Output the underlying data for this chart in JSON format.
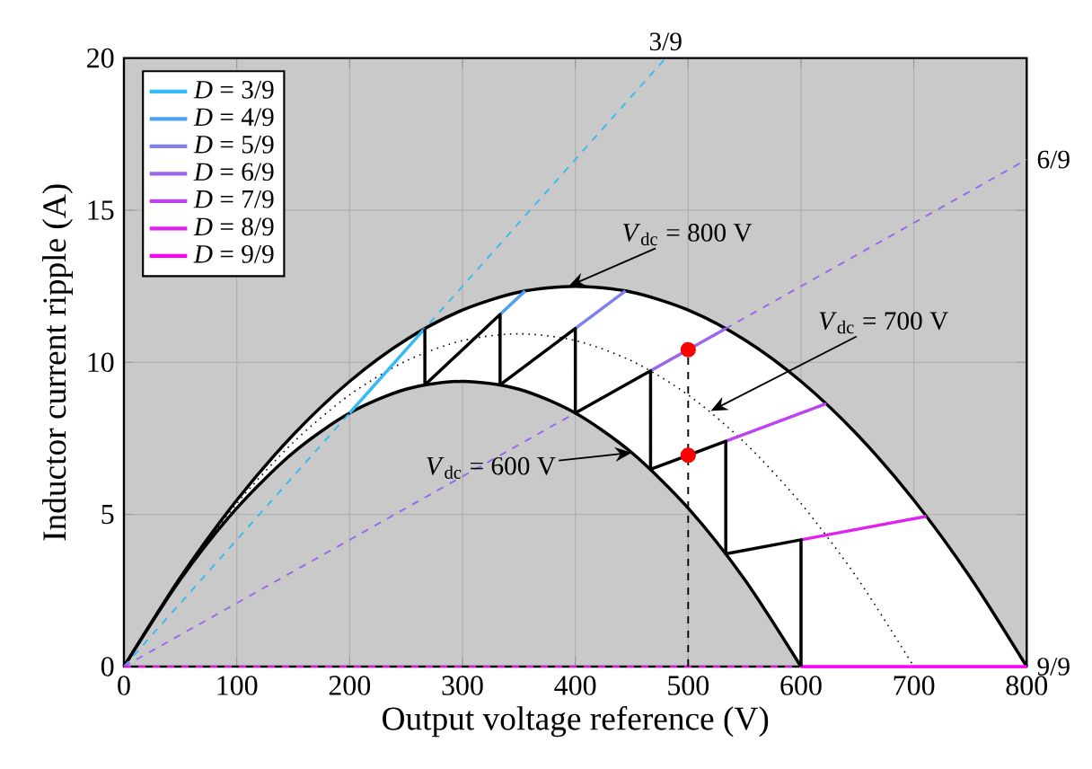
{
  "chart_data": {
    "type": "line",
    "xlabel": "Output voltage reference (V)",
    "ylabel": "Inductor current ripple (A)",
    "xlim": [
      0,
      800
    ],
    "xticks": [
      0,
      100,
      200,
      300,
      400,
      500,
      600,
      700,
      800
    ],
    "ylim": [
      0,
      20
    ],
    "yticks": [
      0,
      5,
      10,
      15,
      20
    ],
    "grid": true,
    "legend": "top left",
    "series": [
      {
        "color": "#000000",
        "line_style": "solid",
        "x": [
          0,
          50,
          100,
          150,
          200,
          250,
          300,
          350,
          400,
          450,
          500,
          550,
          600,
          650,
          700,
          750,
          800
        ],
        "values": [
          0,
          2.93,
          5.469,
          7.617,
          9.375,
          10.742,
          11.719,
          12.305,
          12.5,
          12.305,
          11.719,
          10.742,
          9.375,
          7.617,
          5.469,
          2.93,
          0
        ],
        "upper": [
          0,
          2.93,
          5.469,
          7.617,
          9.375,
          10.742,
          11.719,
          12.305,
          12.5,
          12.305,
          11.719,
          10.742,
          9.375,
          7.617,
          5.469,
          2.93,
          0
        ],
        "lower": [
          0,
          2.865,
          5.208,
          7.031,
          8.333,
          9.115,
          9.375,
          9.115,
          8.333,
          7.031,
          5.208,
          2.865,
          0,
          0,
          0,
          0,
          0
        ]
      },
      {
        "color": "#000000",
        "line_style": "solid",
        "x": [
          0,
          50,
          100,
          150,
          200,
          250,
          300,
          350,
          400,
          450,
          500,
          550,
          600
        ],
        "values": [
          0,
          2.865,
          5.208,
          7.031,
          8.333,
          9.115,
          9.375,
          9.115,
          8.333,
          7.031,
          5.208,
          2.865,
          0
        ]
      },
      {
        "color": "#000000",
        "line_style": "dotted",
        "x": [
          0,
          50,
          100,
          150,
          200,
          250,
          300,
          350,
          400,
          450,
          500,
          550,
          600,
          650,
          700
        ],
        "values": [
          0,
          2.902,
          5.357,
          7.366,
          8.929,
          10.045,
          10.714,
          10.938,
          10.714,
          10.045,
          8.929,
          7.366,
          5.357,
          2.902,
          0
        ]
      },
      {
        "color": "#33bbf5",
        "line_style": "dashed",
        "x": [
          0,
          480
        ],
        "values": [
          0,
          20
        ]
      },
      {
        "color": "#9966ee",
        "line_style": "dashed",
        "x": [
          0,
          800
        ],
        "values": [
          0,
          16.667
        ]
      },
      {
        "color": "#ff00ff",
        "line_style": "dashed",
        "x": [
          0,
          600
        ],
        "values": [
          0,
          0
        ]
      },
      {
        "name": "*D* = 3/9",
        "color": "#33bbf5",
        "line_style": "solid",
        "x": [
          200,
          266.67
        ],
        "values": [
          8.333,
          11.111
        ]
      },
      {
        "name": "*D* = 4/9",
        "color": "#4d9ff2",
        "line_style": "solid",
        "x": [
          333.33,
          355.56
        ],
        "values": [
          11.574,
          12.346
        ]
      },
      {
        "name": "*D* = 5/9",
        "color": "#7f80f0",
        "line_style": "solid",
        "x": [
          400,
          444.44
        ],
        "values": [
          11.111,
          12.346
        ]
      },
      {
        "name": "*D* = 6/9",
        "color": "#9966ee",
        "line_style": "solid",
        "x": [
          466.67,
          533.33
        ],
        "values": [
          9.722,
          11.111
        ]
      },
      {
        "name": "*D* = 7/9",
        "color": "#bb44ee",
        "line_style": "solid",
        "x": [
          533.33,
          622.22
        ],
        "values": [
          7.407,
          8.642
        ]
      },
      {
        "name": "*D* = 8/9",
        "color": "#dd22ee",
        "line_style": "solid",
        "x": [
          600,
          711.11
        ],
        "values": [
          4.167,
          4.938
        ]
      },
      {
        "name": "*D* = 9/9",
        "color": "#ff00ff",
        "line_style": "solid",
        "x": [
          600,
          800
        ],
        "values": [
          0,
          0
        ]
      },
      {
        "color": "#000000",
        "line_style": "solid",
        "x": [
          266.67,
          266.67,
          333.33,
          333.33,
          400,
          400,
          466.67,
          466.67,
          533.33,
          533.33,
          600,
          600
        ],
        "values": [
          11.111,
          9.259,
          11.574,
          9.259,
          11.111,
          8.333,
          9.722,
          6.481,
          7.407,
          3.704,
          4.167,
          0
        ]
      },
      {
        "color": "#000000",
        "line_style": "dashed",
        "x": [
          500,
          500
        ],
        "values": [
          0,
          10.417
        ]
      },
      {
        "type": "scatter",
        "marker": "circle",
        "color": "#ff0000",
        "x": [
          500,
          500
        ],
        "values": [
          10.417,
          6.944
        ]
      }
    ],
    "annotations": [
      {
        "text": "3/9",
        "x": 480,
        "y": 20
      },
      {
        "text": "6/9",
        "x": 800,
        "y": 16.667
      },
      {
        "text": "9/9",
        "x": 800,
        "y": 0
      },
      {
        "text": "*V*$_{dc}$ = 800 V",
        "x": 394,
        "y": 12.5
      },
      {
        "text": "*V*$_{dc}$ = 700 V",
        "x": 520,
        "y": 8.4
      },
      {
        "text": "*V*$_{dc}$ = 600 V",
        "x": 450,
        "y": 7.03
      }
    ]
  }
}
